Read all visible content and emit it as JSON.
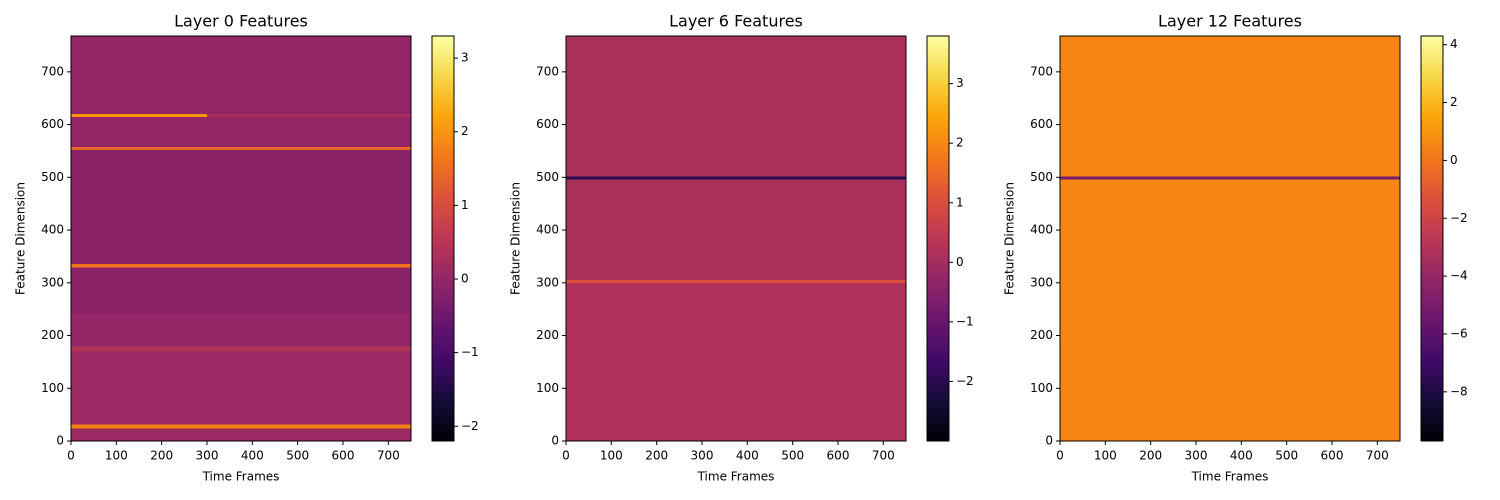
{
  "chart_data": [
    {
      "type": "heatmap",
      "title": "Layer 0 Features",
      "xlabel": "Time Frames",
      "ylabel": "Feature Dimension",
      "colormap": "inferno",
      "xbins": [
        0,
        300,
        750
      ],
      "ybins": [
        0,
        24,
        32,
        170,
        180,
        240,
        330,
        336,
        552,
        558,
        615,
        621,
        768
      ],
      "values": [
        [
          0.1,
          0.1
        ],
        [
          1.8,
          1.8
        ],
        [
          0.1,
          0.1
        ],
        [
          0.4,
          0.4
        ],
        [
          0.0,
          0.0
        ],
        [
          -0.1,
          -0.1
        ],
        [
          1.6,
          1.6
        ],
        [
          -0.1,
          -0.1
        ],
        [
          1.4,
          1.4
        ],
        [
          0.0,
          0.0
        ],
        [
          2.0,
          0.3
        ],
        [
          0.0,
          0.0
        ]
      ],
      "xlim": [
        0,
        750
      ],
      "ylim": [
        0,
        768
      ],
      "xticks": [
        0,
        100,
        200,
        300,
        400,
        500,
        600,
        700
      ],
      "yticks": [
        0,
        100,
        200,
        300,
        400,
        500,
        600,
        700
      ],
      "clim": [
        -2.2,
        3.3
      ],
      "cticks": [
        {
          "value": -2,
          "label": "−2"
        },
        {
          "value": -1,
          "label": "−1"
        },
        0,
        1,
        2,
        3
      ]
    },
    {
      "type": "heatmap",
      "title": "Layer 6 Features",
      "xlabel": "Time Frames",
      "ylabel": "Feature Dimension",
      "colormap": "inferno",
      "xbins": [
        0,
        375,
        750
      ],
      "ybins": [
        0,
        300,
        306,
        496,
        502,
        768
      ],
      "values": [
        [
          0.2,
          0.2
        ],
        [
          1.0,
          1.0
        ],
        [
          0.1,
          0.1
        ],
        [
          -2.0,
          -2.0
        ],
        [
          0.1,
          0.1
        ]
      ],
      "xlim": [
        0,
        750
      ],
      "ylim": [
        0,
        768
      ],
      "xticks": [
        0,
        100,
        200,
        300,
        400,
        500,
        600,
        700
      ],
      "yticks": [
        0,
        100,
        200,
        300,
        400,
        500,
        600,
        700
      ],
      "clim": [
        -3.0,
        3.8
      ],
      "cticks": [
        {
          "value": -2,
          "label": "−2"
        },
        {
          "value": -1,
          "label": "−1"
        },
        0,
        1,
        2,
        3
      ]
    },
    {
      "type": "heatmap",
      "title": "Layer 12 Features",
      "xlabel": "Time Frames",
      "ylabel": "Feature Dimension",
      "colormap": "inferno",
      "xbins": [
        0,
        375,
        750
      ],
      "ybins": [
        0,
        496,
        502,
        768
      ],
      "values": [
        [
          0.5,
          0.5
        ],
        [
          -5,
          -5
        ],
        [
          0.5,
          0.5
        ]
      ],
      "xlim": [
        0,
        750
      ],
      "ylim": [
        0,
        768
      ],
      "xticks": [
        0,
        100,
        200,
        300,
        400,
        500,
        600,
        700
      ],
      "yticks": [
        0,
        100,
        200,
        300,
        400,
        500,
        600,
        700
      ],
      "clim": [
        -9.7,
        4.3
      ],
      "cticks": [
        {
          "value": -8,
          "label": "−8"
        },
        {
          "value": -6,
          "label": "−6"
        },
        {
          "value": -4,
          "label": "−4"
        },
        {
          "value": -2,
          "label": "−2"
        },
        0,
        2,
        4
      ]
    }
  ]
}
